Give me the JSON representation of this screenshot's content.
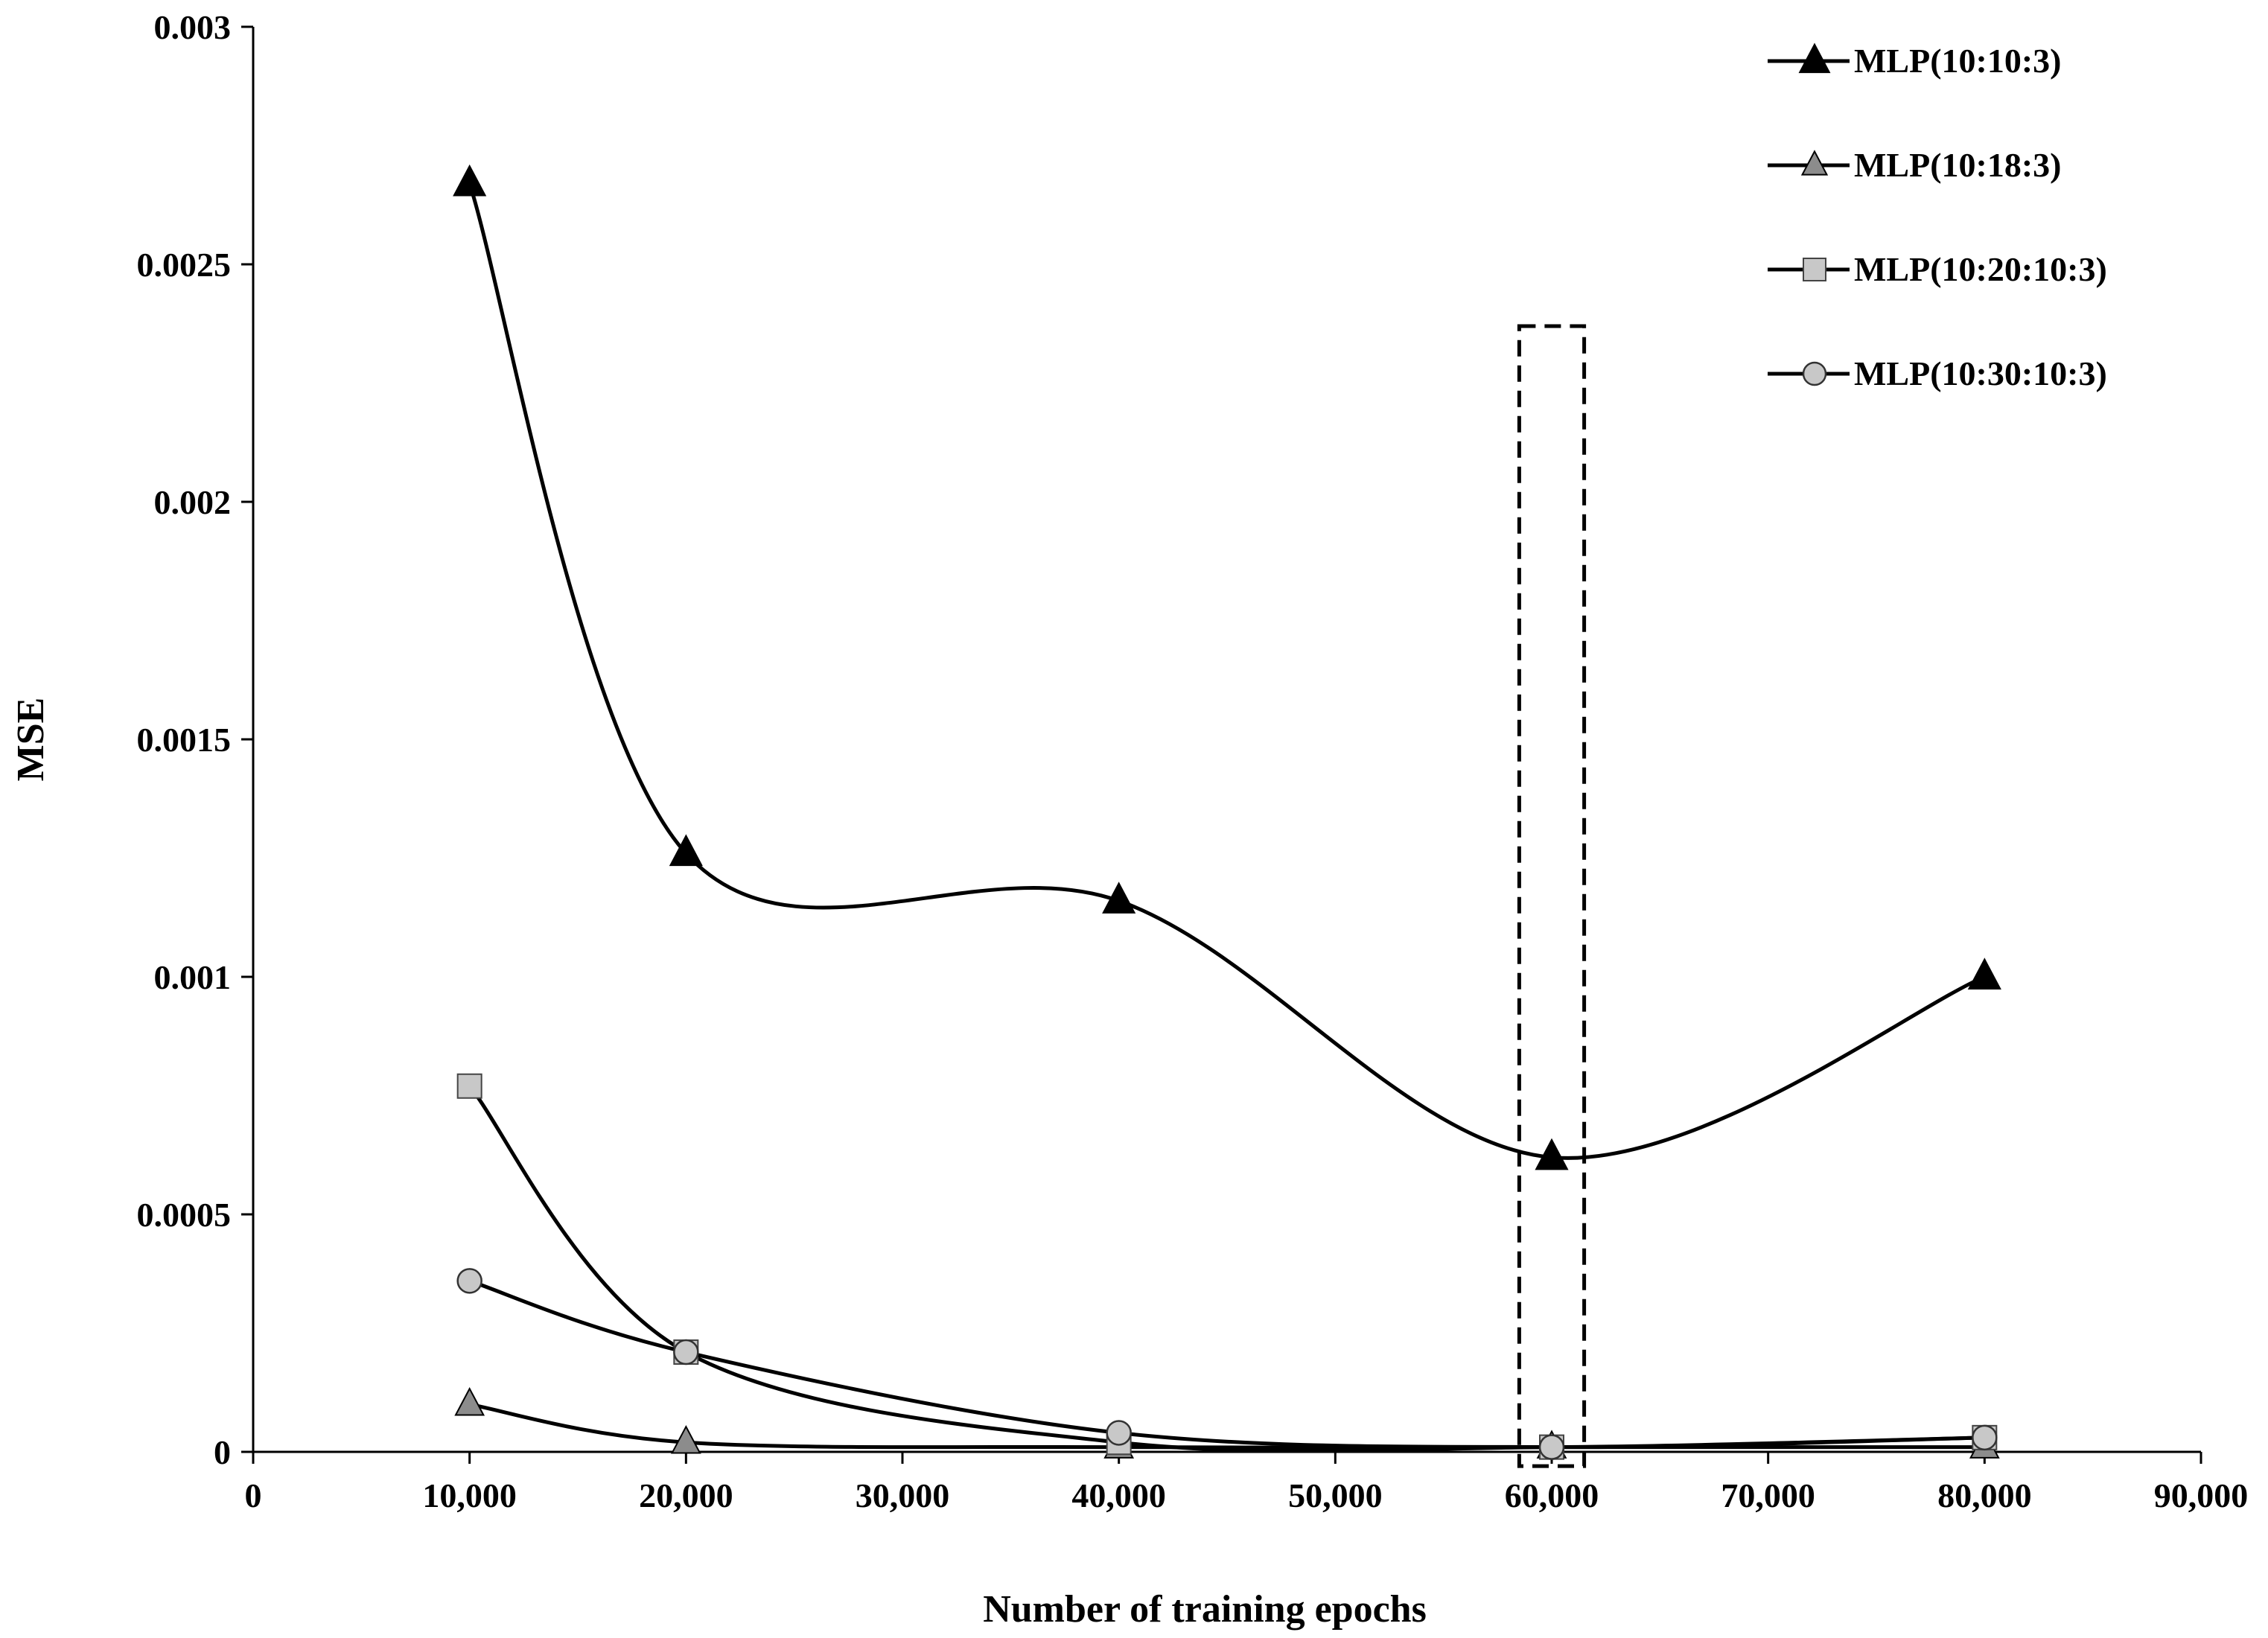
{
  "chart_data": {
    "type": "line",
    "xlabel": "Number of training epochs",
    "ylabel": "MSE",
    "xlim": [
      0,
      90000
    ],
    "ylim": [
      0,
      0.003
    ],
    "x_ticks": [
      0,
      10000,
      20000,
      30000,
      40000,
      50000,
      60000,
      70000,
      80000,
      90000
    ],
    "x_tick_labels": [
      "0",
      "10,000",
      "20,000",
      "30,000",
      "40,000",
      "50,000",
      "60,000",
      "70,000",
      "80,000",
      "90,000"
    ],
    "y_ticks": [
      0,
      0.0005,
      0.001,
      0.0015,
      0.002,
      0.0025,
      0.003
    ],
    "y_tick_labels": [
      "0",
      "0.0005",
      "0.001",
      "0.0015",
      "0.002",
      "0.0025",
      "0.003"
    ],
    "grid": false,
    "legend_position": "top-right",
    "smooth_lines": true,
    "series": [
      {
        "name": "MLP(10:10:3)",
        "marker": "triangle",
        "marker_fill": "#000000",
        "x": [
          10000,
          20000,
          40000,
          60000,
          80000
        ],
        "y": [
          0.00267,
          0.00126,
          0.00116,
          0.00062,
          0.001
        ]
      },
      {
        "name": "MLP(10:18:3)",
        "marker": "triangle",
        "marker_fill": "#8c8c8c",
        "x": [
          10000,
          20000,
          40000,
          60000,
          80000
        ],
        "y": [
          0.0001,
          2e-05,
          1e-05,
          1e-05,
          1e-05
        ]
      },
      {
        "name": "MLP(10:20:10:3)",
        "marker": "square",
        "marker_fill": "#c8c8c8",
        "x": [
          10000,
          20000,
          40000,
          60000,
          80000
        ],
        "y": [
          0.00077,
          0.00021,
          2e-05,
          1e-05,
          3e-05
        ]
      },
      {
        "name": "MLP(10:30:10:3)",
        "marker": "circle",
        "marker_fill": "#c8c8c8",
        "x": [
          10000,
          20000,
          40000,
          60000,
          80000
        ],
        "y": [
          0.00036,
          0.00021,
          4e-05,
          1e-05,
          3e-05
        ]
      }
    ],
    "highlight_box": {
      "x_range": [
        58500,
        61500
      ],
      "y_range": [
        -3e-05,
        0.00237
      ],
      "style": "dashed"
    }
  }
}
